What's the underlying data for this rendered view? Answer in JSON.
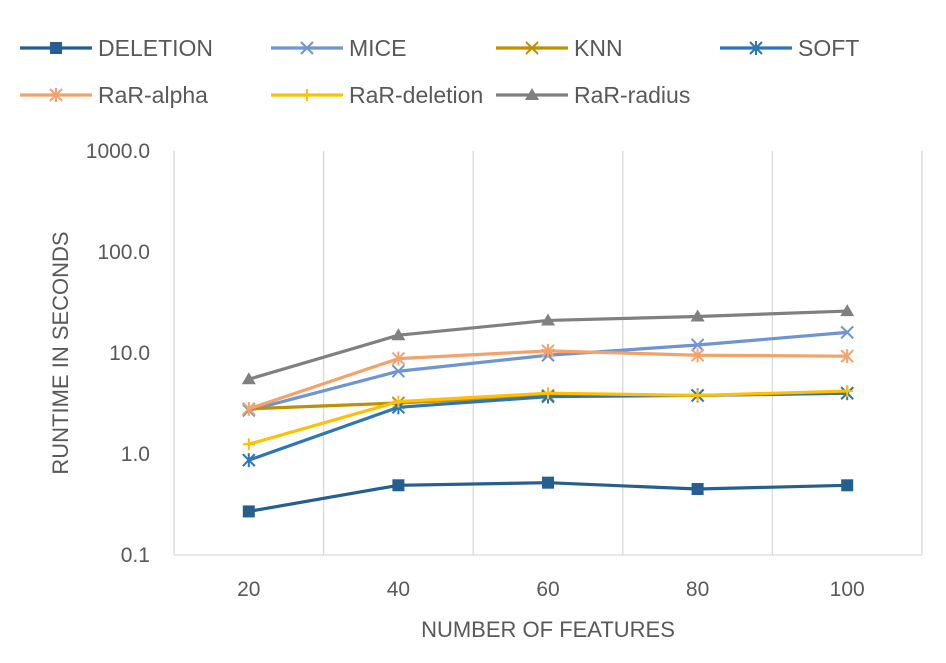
{
  "chart_data": {
    "type": "line",
    "title": "",
    "xlabel": "NUMBER OF FEATURES",
    "ylabel": "RUNTIME IN SECONDS",
    "y_scale": "log",
    "ylim": [
      0.1,
      1000
    ],
    "y_ticks": [
      "0.1",
      "1.0",
      "10.0",
      "100.0",
      "1000.0"
    ],
    "categories": [
      "20",
      "40",
      "60",
      "80",
      "100"
    ],
    "grid": "vertical",
    "legend_position": "top",
    "series": [
      {
        "name": "DELETION",
        "color": "#255E91",
        "marker": "square",
        "values": [
          0.27,
          0.49,
          0.52,
          0.45,
          0.49
        ]
      },
      {
        "name": "MICE",
        "color": "#6F94D2",
        "marker": "x",
        "values": [
          2.7,
          6.6,
          9.5,
          12.0,
          16.0
        ]
      },
      {
        "name": "KNN",
        "color": "#BF9000",
        "marker": "x",
        "values": [
          2.8,
          3.2,
          3.8,
          3.8,
          4.0
        ]
      },
      {
        "name": "SOFT",
        "color": "#2E75B6",
        "marker": "star",
        "values": [
          0.87,
          2.9,
          3.7,
          3.8,
          4.0
        ]
      },
      {
        "name": "RaR-alpha",
        "color": "#F4A26A",
        "marker": "star",
        "values": [
          2.8,
          8.8,
          10.5,
          9.5,
          9.3
        ]
      },
      {
        "name": "RaR-deletion",
        "color": "#FFC000",
        "marker": "plus",
        "values": [
          1.25,
          3.3,
          4.0,
          3.8,
          4.2
        ]
      },
      {
        "name": "RaR-radius",
        "color": "#808080",
        "marker": "triangle",
        "values": [
          5.5,
          15.0,
          21.0,
          23.0,
          26.0
        ]
      }
    ]
  }
}
